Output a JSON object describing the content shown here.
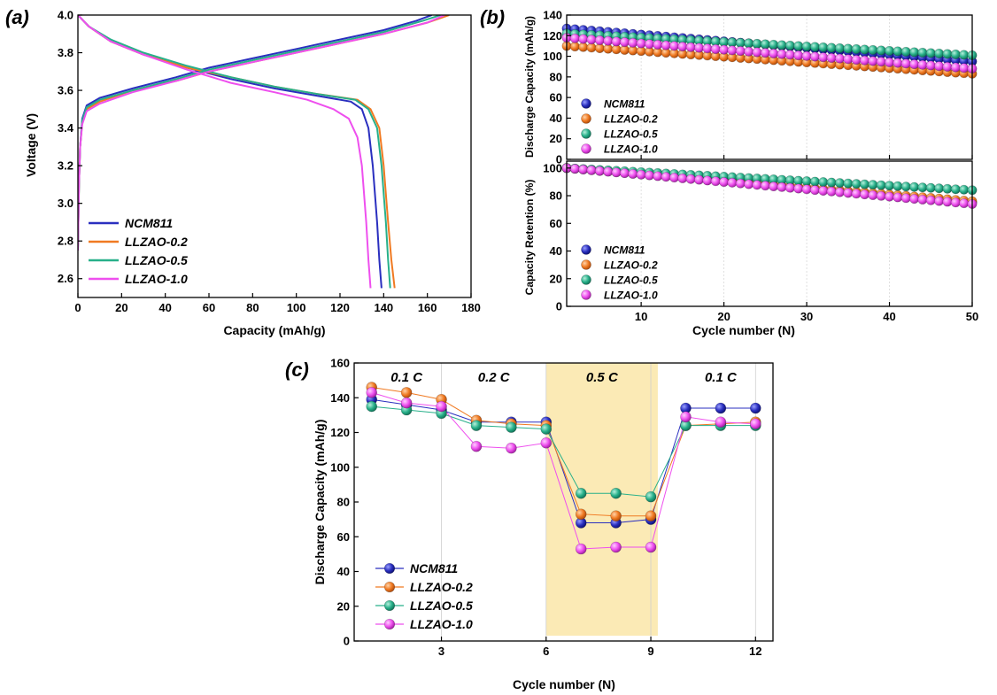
{
  "colors": {
    "NCM811": "#2a2fbf",
    "LLZAO-0.2": "#f07a22",
    "LLZAO-0.5": "#28b08a",
    "LLZAO-1.0": "#ee4fee",
    "highlight": "#fbeab5"
  },
  "chart_data": [
    {
      "id": "a",
      "panel_label": "(a)",
      "type": "line",
      "xlabel": "Capacity (mAh/g)",
      "ylabel": "Voltage (V)",
      "xlim": [
        0,
        180
      ],
      "ylim": [
        2.5,
        4.0
      ],
      "xticks": [
        "0",
        "20",
        "40",
        "60",
        "80",
        "100",
        "120",
        "140",
        "160",
        "180"
      ],
      "yticks": [
        "2.6",
        "2.8",
        "3.0",
        "3.2",
        "3.4",
        "3.6",
        "3.8",
        "4.0"
      ],
      "legend": [
        "NCM811",
        "LLZAO-0.2",
        "LLZAO-0.5",
        "LLZAO-1.0"
      ],
      "legend_position": "bottom-left",
      "series": [
        {
          "name": "NCM811",
          "charge": [
            [
              0,
              2.75
            ],
            [
              0.5,
              3.1
            ],
            [
              1,
              3.3
            ],
            [
              2,
              3.45
            ],
            [
              4,
              3.52
            ],
            [
              10,
              3.56
            ],
            [
              25,
              3.61
            ],
            [
              45,
              3.67
            ],
            [
              60,
              3.72
            ],
            [
              80,
              3.77
            ],
            [
              100,
              3.82
            ],
            [
              120,
              3.87
            ],
            [
              140,
              3.92
            ],
            [
              155,
              3.97
            ],
            [
              162,
              4.0
            ]
          ],
          "discharge": [
            [
              0,
              4.0
            ],
            [
              5,
              3.94
            ],
            [
              15,
              3.86
            ],
            [
              30,
              3.79
            ],
            [
              50,
              3.72
            ],
            [
              70,
              3.66
            ],
            [
              90,
              3.61
            ],
            [
              110,
              3.57
            ],
            [
              125,
              3.54
            ],
            [
              130,
              3.5
            ],
            [
              133,
              3.4
            ],
            [
              135,
              3.2
            ],
            [
              137,
              2.9
            ],
            [
              138,
              2.7
            ],
            [
              139,
              2.55
            ]
          ]
        },
        {
          "name": "LLZAO-0.2",
          "charge": [
            [
              0,
              2.75
            ],
            [
              0.5,
              3.1
            ],
            [
              1,
              3.3
            ],
            [
              2,
              3.43
            ],
            [
              4,
              3.5
            ],
            [
              10,
              3.54
            ],
            [
              25,
              3.6
            ],
            [
              45,
              3.65
            ],
            [
              60,
              3.7
            ],
            [
              80,
              3.75
            ],
            [
              100,
              3.8
            ],
            [
              120,
              3.85
            ],
            [
              140,
              3.9
            ],
            [
              160,
              3.96
            ],
            [
              170,
              4.0
            ]
          ],
          "discharge": [
            [
              0,
              4.0
            ],
            [
              5,
              3.94
            ],
            [
              15,
              3.86
            ],
            [
              30,
              3.79
            ],
            [
              50,
              3.72
            ],
            [
              70,
              3.67
            ],
            [
              90,
              3.62
            ],
            [
              110,
              3.58
            ],
            [
              128,
              3.55
            ],
            [
              134,
              3.5
            ],
            [
              138,
              3.4
            ],
            [
              140,
              3.2
            ],
            [
              142,
              2.9
            ],
            [
              143.5,
              2.7
            ],
            [
              145,
              2.55
            ]
          ]
        },
        {
          "name": "LLZAO-0.5",
          "charge": [
            [
              0,
              2.75
            ],
            [
              0.5,
              3.1
            ],
            [
              1,
              3.3
            ],
            [
              2,
              3.44
            ],
            [
              4,
              3.51
            ],
            [
              10,
              3.55
            ],
            [
              25,
              3.6
            ],
            [
              45,
              3.66
            ],
            [
              60,
              3.71
            ],
            [
              80,
              3.76
            ],
            [
              100,
              3.81
            ],
            [
              120,
              3.86
            ],
            [
              140,
              3.91
            ],
            [
              158,
              3.97
            ],
            [
              166,
              4.0
            ]
          ],
          "discharge": [
            [
              0,
              4.0
            ],
            [
              5,
              3.94
            ],
            [
              15,
              3.87
            ],
            [
              30,
              3.8
            ],
            [
              50,
              3.73
            ],
            [
              70,
              3.67
            ],
            [
              90,
              3.62
            ],
            [
              110,
              3.58
            ],
            [
              127,
              3.55
            ],
            [
              133,
              3.5
            ],
            [
              137,
              3.4
            ],
            [
              139,
              3.2
            ],
            [
              141,
              2.9
            ],
            [
              142,
              2.7
            ],
            [
              143,
              2.55
            ]
          ]
        },
        {
          "name": "LLZAO-1.0",
          "charge": [
            [
              0,
              2.75
            ],
            [
              0.5,
              3.1
            ],
            [
              1,
              3.3
            ],
            [
              2,
              3.42
            ],
            [
              4,
              3.49
            ],
            [
              10,
              3.53
            ],
            [
              25,
              3.59
            ],
            [
              45,
              3.65
            ],
            [
              60,
              3.7
            ],
            [
              80,
              3.75
            ],
            [
              100,
              3.8
            ],
            [
              120,
              3.85
            ],
            [
              140,
              3.9
            ],
            [
              160,
              3.96
            ],
            [
              168,
              4.0
            ]
          ],
          "discharge": [
            [
              0,
              4.0
            ],
            [
              5,
              3.94
            ],
            [
              15,
              3.86
            ],
            [
              30,
              3.79
            ],
            [
              50,
              3.71
            ],
            [
              70,
              3.64
            ],
            [
              90,
              3.59
            ],
            [
              105,
              3.55
            ],
            [
              117,
              3.5
            ],
            [
              124,
              3.45
            ],
            [
              128,
              3.35
            ],
            [
              130,
              3.2
            ],
            [
              132,
              2.9
            ],
            [
              133,
              2.7
            ],
            [
              134,
              2.55
            ]
          ]
        }
      ]
    },
    {
      "id": "b",
      "panel_label": "(b)",
      "type": "scatter",
      "xlabel": "Cycle number (N)",
      "xlim": [
        1,
        50
      ],
      "xticks": [
        "10",
        "20",
        "30",
        "40",
        "50"
      ],
      "subplots": [
        {
          "ylabel": "Discharge Capacity (mAh/g)",
          "ylim": [
            0,
            140
          ],
          "yticks": [
            "0",
            "20",
            "40",
            "60",
            "80",
            "100",
            "120",
            "140"
          ],
          "legend": [
            "NCM811",
            "LLZAO-0.2",
            "LLZAO-0.5",
            "LLZAO-1.0"
          ],
          "series": [
            {
              "name": "NCM811",
              "start": 127,
              "end": 95
            },
            {
              "name": "LLZAO-0.2",
              "start": 110,
              "end": 83
            },
            {
              "name": "LLZAO-0.5",
              "start": 122,
              "end": 101
            },
            {
              "name": "LLZAO-1.0",
              "start": 118,
              "end": 88
            }
          ]
        },
        {
          "ylabel": "Capacity Retention (%)",
          "ylim": [
            0,
            105
          ],
          "yticks": [
            "0",
            "20",
            "40",
            "60",
            "80",
            "100"
          ],
          "legend": [
            "NCM811",
            "LLZAO-0.2",
            "LLZAO-0.5",
            "LLZAO-1.0"
          ],
          "series": [
            {
              "name": "NCM811",
              "start": 100,
              "end": 75
            },
            {
              "name": "LLZAO-0.2",
              "start": 100,
              "end": 76
            },
            {
              "name": "LLZAO-0.5",
              "start": 100,
              "end": 84
            },
            {
              "name": "LLZAO-1.0",
              "start": 100,
              "end": 74
            }
          ]
        }
      ]
    },
    {
      "id": "c",
      "panel_label": "(c)",
      "type": "line",
      "xlabel": "Cycle number (N)",
      "ylabel": "Discharge Capacity (mAh/g)",
      "xlim": [
        0.5,
        12.5
      ],
      "ylim": [
        0,
        160
      ],
      "xticks": [
        "3",
        "6",
        "9",
        "12"
      ],
      "yticks": [
        "0",
        "20",
        "40",
        "60",
        "80",
        "100",
        "120",
        "140",
        "160"
      ],
      "rate_labels": [
        "0.1 C",
        "0.2 C",
        "0.5 C",
        "0.1 C"
      ],
      "highlight_range": [
        6,
        9.2
      ],
      "legend": [
        "NCM811",
        "LLZAO-0.2",
        "LLZAO-0.5",
        "LLZAO-1.0"
      ],
      "x": [
        1,
        2,
        3,
        4,
        5,
        6,
        7,
        8,
        9,
        10,
        11,
        12
      ],
      "series": [
        {
          "name": "NCM811",
          "values": [
            139,
            136,
            133,
            126,
            126,
            126,
            68,
            68,
            70,
            134,
            134,
            134
          ]
        },
        {
          "name": "LLZAO-0.2",
          "values": [
            146,
            143,
            139,
            127,
            125,
            124,
            73,
            72,
            72,
            124,
            125,
            126
          ]
        },
        {
          "name": "LLZAO-0.5",
          "values": [
            135,
            133,
            131,
            124,
            123,
            122,
            85,
            85,
            83,
            124,
            124,
            124
          ]
        },
        {
          "name": "LLZAO-1.0",
          "values": [
            143,
            137,
            135,
            112,
            111,
            114,
            53,
            54,
            54,
            129,
            126,
            125
          ]
        }
      ]
    }
  ]
}
